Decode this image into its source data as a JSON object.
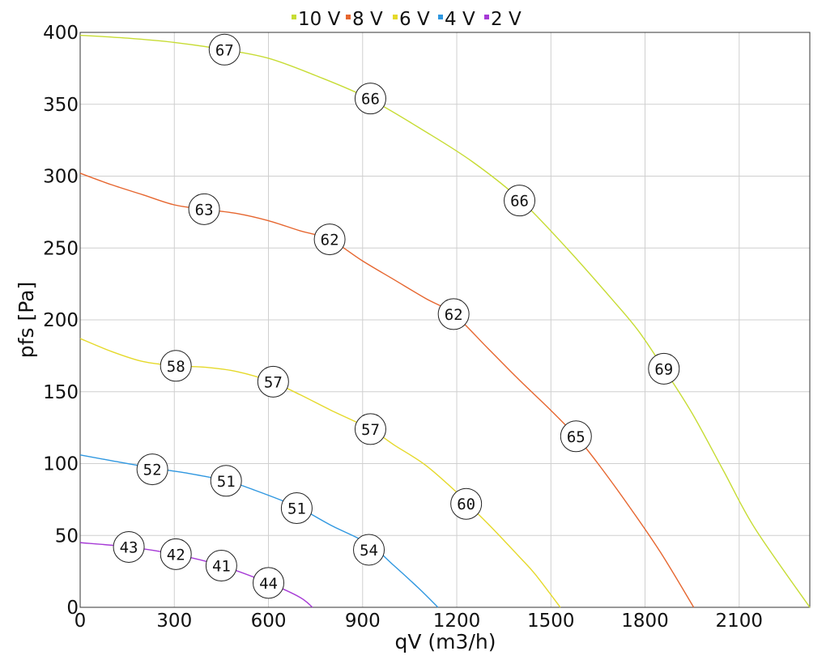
{
  "chart_data": {
    "type": "line",
    "xlabel": "qV (m3/h)",
    "ylabel": "pfs [Pa]",
    "xlim": [
      0,
      2325
    ],
    "ylim": [
      0,
      400
    ],
    "xticks": [
      0,
      300,
      600,
      900,
      1200,
      1500,
      1800,
      2100
    ],
    "yticks": [
      0,
      50,
      100,
      150,
      200,
      250,
      300,
      350,
      400
    ],
    "grid": true,
    "legend_position": "top",
    "series": [
      {
        "name": "10 V",
        "color": "#c7dc34",
        "points": [
          [
            0,
            398
          ],
          [
            150,
            396
          ],
          [
            300,
            393
          ],
          [
            460,
            388
          ],
          [
            600,
            382
          ],
          [
            750,
            370
          ],
          [
            920,
            354
          ],
          [
            1100,
            331
          ],
          [
            1250,
            310
          ],
          [
            1400,
            284
          ],
          [
            1550,
            250
          ],
          [
            1700,
            213
          ],
          [
            1780,
            192
          ],
          [
            1860,
            166
          ],
          [
            1950,
            135
          ],
          [
            2050,
            95
          ],
          [
            2150,
            55
          ],
          [
            2325,
            0
          ]
        ],
        "labels": [
          {
            "x": 460,
            "y": 388,
            "text": "67"
          },
          {
            "x": 925,
            "y": 354,
            "text": "66"
          },
          {
            "x": 1400,
            "y": 283,
            "text": "66"
          },
          {
            "x": 1860,
            "y": 166,
            "text": "69"
          }
        ]
      },
      {
        "name": "8 V",
        "color": "#e6662f",
        "points": [
          [
            0,
            302
          ],
          [
            100,
            294
          ],
          [
            200,
            287
          ],
          [
            300,
            280
          ],
          [
            395,
            277
          ],
          [
            500,
            274
          ],
          [
            600,
            269
          ],
          [
            700,
            262
          ],
          [
            795,
            256
          ],
          [
            900,
            241
          ],
          [
            1000,
            228
          ],
          [
            1100,
            215
          ],
          [
            1190,
            204
          ],
          [
            1300,
            180
          ],
          [
            1400,
            158
          ],
          [
            1500,
            137
          ],
          [
            1580,
            119
          ],
          [
            1650,
            100
          ],
          [
            1750,
            70
          ],
          [
            1850,
            38
          ],
          [
            1955,
            0
          ]
        ],
        "labels": [
          {
            "x": 395,
            "y": 277,
            "text": "63"
          },
          {
            "x": 795,
            "y": 256,
            "text": "62"
          },
          {
            "x": 1190,
            "y": 204,
            "text": "62"
          },
          {
            "x": 1580,
            "y": 119,
            "text": "65"
          }
        ]
      },
      {
        "name": "6 V",
        "color": "#e5d92a",
        "points": [
          [
            0,
            187
          ],
          [
            100,
            178
          ],
          [
            200,
            171
          ],
          [
            305,
            168
          ],
          [
            400,
            167
          ],
          [
            500,
            164
          ],
          [
            610,
            157
          ],
          [
            700,
            148
          ],
          [
            800,
            137
          ],
          [
            925,
            124
          ],
          [
            1000,
            113
          ],
          [
            1100,
            99
          ],
          [
            1200,
            80
          ],
          [
            1230,
            73
          ],
          [
            1300,
            58
          ],
          [
            1400,
            35
          ],
          [
            1450,
            23
          ],
          [
            1530,
            0
          ]
        ],
        "labels": [
          {
            "x": 305,
            "y": 168,
            "text": "58"
          },
          {
            "x": 615,
            "y": 157,
            "text": "57"
          },
          {
            "x": 925,
            "y": 124,
            "text": "57"
          },
          {
            "x": 1230,
            "y": 72,
            "text": "60"
          }
        ]
      },
      {
        "name": "4 V",
        "color": "#2f97e0",
        "points": [
          [
            0,
            106
          ],
          [
            100,
            102
          ],
          [
            230,
            97
          ],
          [
            350,
            93
          ],
          [
            465,
            88
          ],
          [
            550,
            82
          ],
          [
            690,
            70
          ],
          [
            800,
            57
          ],
          [
            920,
            44
          ],
          [
            1000,
            29
          ],
          [
            1080,
            13
          ],
          [
            1140,
            0
          ]
        ],
        "labels": [
          {
            "x": 230,
            "y": 96,
            "text": "52"
          },
          {
            "x": 465,
            "y": 88,
            "text": "51"
          },
          {
            "x": 690,
            "y": 69,
            "text": "51"
          },
          {
            "x": 920,
            "y": 40,
            "text": "54"
          }
        ]
      },
      {
        "name": "2 V",
        "color": "#a63ad6",
        "points": [
          [
            0,
            45
          ],
          [
            155,
            42
          ],
          [
            300,
            37
          ],
          [
            450,
            29
          ],
          [
            600,
            17
          ],
          [
            700,
            7
          ],
          [
            740,
            0
          ]
        ],
        "labels": [
          {
            "x": 155,
            "y": 42,
            "text": "43"
          },
          {
            "x": 305,
            "y": 37,
            "text": "42"
          },
          {
            "x": 450,
            "y": 29,
            "text": "41"
          },
          {
            "x": 600,
            "y": 17,
            "text": "44"
          }
        ]
      }
    ]
  }
}
